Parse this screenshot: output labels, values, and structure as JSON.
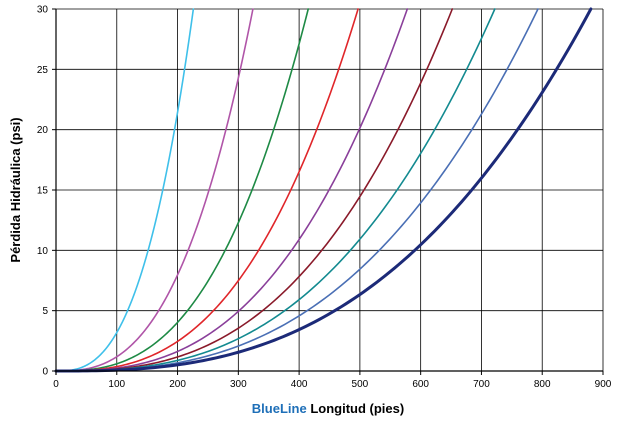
{
  "chart_data": {
    "type": "line",
    "xlabel_brand": "BlueLine",
    "xlabel_rest": " Longitud (pies)",
    "ylabel": "Pérdida Hidráulica (psi)",
    "xlim": [
      0,
      900
    ],
    "ylim": [
      0,
      30
    ],
    "xticks": [
      0,
      100,
      200,
      300,
      400,
      500,
      600,
      700,
      800,
      900
    ],
    "yticks": [
      0,
      5,
      10,
      15,
      20,
      25,
      30
    ],
    "grid": true,
    "legend": "none",
    "curve_exponent": 2.75,
    "series": [
      {
        "color": "#3fc0ea",
        "width": 1.6,
        "x_at_30psi": 226
      },
      {
        "color": "#b055a8",
        "width": 1.6,
        "x_at_30psi": 324
      },
      {
        "color": "#1e8a45",
        "width": 1.6,
        "x_at_30psi": 415
      },
      {
        "color": "#e0262a",
        "width": 1.6,
        "x_at_30psi": 497
      },
      {
        "color": "#8a3f9a",
        "width": 1.6,
        "x_at_30psi": 578
      },
      {
        "color": "#8a1a2a",
        "width": 1.6,
        "x_at_30psi": 652
      },
      {
        "color": "#138a90",
        "width": 1.6,
        "x_at_30psi": 722
      },
      {
        "color": "#4a6fb5",
        "width": 1.6,
        "x_at_30psi": 793
      },
      {
        "color": "#1c2a78",
        "width": 3.0,
        "x_at_30psi": 880
      }
    ],
    "colors": {
      "brand": "#1e6fb8",
      "axis_title": "#000000",
      "grid": "#000000"
    }
  }
}
